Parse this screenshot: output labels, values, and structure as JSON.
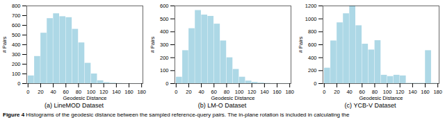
{
  "chart_data": [
    {
      "type": "histogram",
      "subtitle": "(a) LineMOD Dataset",
      "xlabel": "Geodesic Distance",
      "ylabel": "# Pairs",
      "bins": [
        0,
        10,
        20,
        30,
        40,
        50,
        60,
        70,
        80,
        90,
        100,
        110,
        120,
        130,
        140,
        150,
        160,
        170,
        180
      ],
      "values": [
        80,
        280,
        520,
        670,
        720,
        690,
        680,
        560,
        420,
        210,
        100,
        30,
        10,
        5,
        2,
        1,
        1,
        1
      ],
      "color": "#add8e6",
      "xlim": [
        -2,
        182
      ],
      "xticks": [
        0,
        20,
        40,
        60,
        80,
        100,
        120,
        140,
        160,
        180
      ],
      "ylim": [
        0,
        800
      ],
      "yticks": [
        0,
        100,
        200,
        300,
        400,
        500,
        600,
        700,
        800
      ]
    },
    {
      "type": "histogram",
      "subtitle": "(b) LM-O Dataset",
      "xlabel": "Geodesic Distance",
      "ylabel": "# Pairs",
      "bins": [
        0,
        10,
        20,
        30,
        40,
        50,
        60,
        70,
        80,
        90,
        100,
        110,
        120,
        130,
        140,
        150,
        160,
        170,
        180
      ],
      "values": [
        50,
        255,
        425,
        565,
        530,
        520,
        460,
        330,
        200,
        110,
        50,
        20,
        10,
        5,
        2,
        1,
        1,
        1
      ],
      "color": "#add8e6",
      "xlim": [
        -2,
        182
      ],
      "xticks": [
        0,
        20,
        40,
        60,
        80,
        100,
        120,
        140,
        160,
        180
      ],
      "ylim": [
        0,
        600
      ],
      "yticks": [
        0,
        100,
        200,
        300,
        400,
        500,
        600
      ]
    },
    {
      "type": "histogram",
      "subtitle": "(c) YCB-V Dataset",
      "xlabel": "Geodesic Distance",
      "ylabel": "# Pairs",
      "bins": [
        0,
        10,
        20,
        30,
        40,
        50,
        60,
        70,
        80,
        90,
        100,
        110,
        120,
        130,
        140,
        150,
        160,
        170,
        180
      ],
      "values": [
        240,
        660,
        940,
        1080,
        1200,
        895,
        610,
        520,
        665,
        130,
        110,
        130,
        120,
        5,
        5,
        5,
        510,
        5
      ],
      "color": "#add8e6",
      "xlim": [
        -2,
        182
      ],
      "xticks": [
        0,
        20,
        40,
        60,
        80,
        100,
        120,
        140,
        160,
        180
      ],
      "ylim": [
        0,
        1200
      ],
      "yticks": [
        0,
        200,
        400,
        600,
        800,
        1000,
        1200
      ]
    }
  ],
  "caption_title": "Figure 4",
  "caption": "Histograms of the geodesic distance between the sampled reference-query pairs. The in-plane rotation is included in calculating the"
}
